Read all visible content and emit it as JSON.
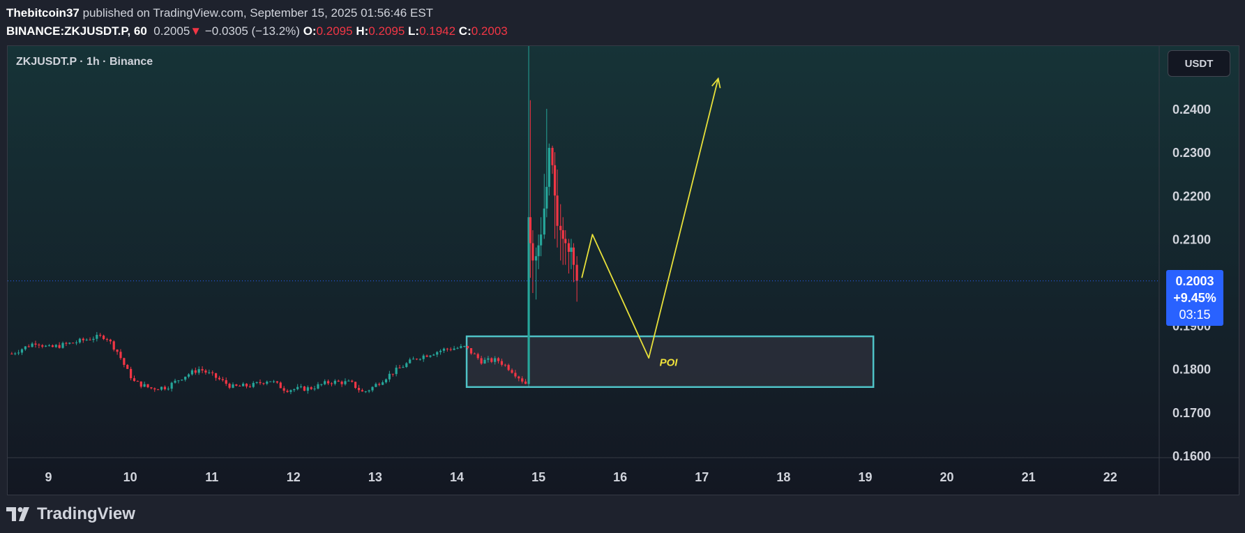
{
  "header": {
    "author": "Thebitcoin37",
    "published": " published on TradingView.com, September 15, 2025 01:56:46 EST",
    "symbol": "BINANCE:ZKJUSDT.P, 60",
    "last": "0.2005",
    "down_arrow": "▼",
    "change": "−0.0305 (−13.2%)",
    "o_label": "O:",
    "o_value": "0.2095",
    "h_label": "H:",
    "h_value": "0.2095",
    "l_label": "L:",
    "l_value": "0.1942",
    "c_label": "C:",
    "c_value": "0.2003"
  },
  "symbol_title": "ZKJUSDT.P · 1h · Binance",
  "currency": "USDT",
  "price_tag": {
    "price": "0.2003",
    "change": "+9.45%",
    "countdown": "03:15"
  },
  "footer": {
    "brand": "TradingView"
  },
  "colors": {
    "up": "#26a69a",
    "down": "#f23645",
    "bg_top": "#163337",
    "bg_bottom": "#131722",
    "poi_border": "#4fc3c7",
    "arrow": "#e8e13a",
    "price_line": "#2962ff"
  },
  "chart_data": {
    "type": "candlestick",
    "x_tick_labels": [
      "9",
      "10",
      "11",
      "12",
      "13",
      "14",
      "15",
      "16",
      "17",
      "18",
      "19",
      "20",
      "21",
      "22"
    ],
    "y_tick_labels": [
      "0.2400",
      "0.2300",
      "0.2200",
      "0.2100",
      "0.1900",
      "0.1800",
      "0.1700",
      "0.1600"
    ],
    "ylim": [
      0.1595,
      0.2545
    ],
    "xlim": [
      8.5,
      22.6
    ],
    "current_price": 0.2003,
    "anchors": [
      [
        8.55,
        0.1835
      ],
      [
        8.85,
        0.1862
      ],
      [
        9.0,
        0.1848
      ],
      [
        9.3,
        0.186
      ],
      [
        9.55,
        0.1872
      ],
      [
        9.7,
        0.1875
      ],
      [
        9.85,
        0.1838
      ],
      [
        9.95,
        0.18
      ],
      [
        10.05,
        0.177
      ],
      [
        10.25,
        0.1755
      ],
      [
        10.45,
        0.1758
      ],
      [
        10.65,
        0.1782
      ],
      [
        10.85,
        0.18
      ],
      [
        11.05,
        0.178
      ],
      [
        11.25,
        0.1758
      ],
      [
        11.5,
        0.1762
      ],
      [
        11.7,
        0.1775
      ],
      [
        11.9,
        0.1752
      ],
      [
        12.2,
        0.1755
      ],
      [
        12.45,
        0.177
      ],
      [
        12.7,
        0.1768
      ],
      [
        12.85,
        0.1745
      ],
      [
        12.95,
        0.1755
      ],
      [
        13.2,
        0.179
      ],
      [
        13.5,
        0.1825
      ],
      [
        13.85,
        0.1845
      ],
      [
        14.1,
        0.185
      ],
      [
        14.3,
        0.1818
      ],
      [
        14.5,
        0.182
      ],
      [
        14.65,
        0.18
      ],
      [
        14.85,
        0.1765
      ]
    ],
    "spike": {
      "x": [
        14.88,
        14.9,
        14.93,
        14.97,
        15.0,
        15.03,
        15.07,
        15.1,
        15.13,
        15.17,
        15.2,
        15.23,
        15.27,
        15.3,
        15.33,
        15.37,
        15.4,
        15.43,
        15.47
      ],
      "open": [
        0.1765,
        0.215,
        0.209,
        0.205,
        0.206,
        0.2085,
        0.211,
        0.217,
        0.222,
        0.231,
        0.227,
        0.22,
        0.213,
        0.212,
        0.21,
        0.209,
        0.207,
        0.208,
        0.204
      ],
      "close": [
        0.215,
        0.209,
        0.205,
        0.206,
        0.2085,
        0.211,
        0.217,
        0.222,
        0.231,
        0.227,
        0.22,
        0.213,
        0.212,
        0.21,
        0.209,
        0.207,
        0.208,
        0.204,
        0.2003
      ],
      "high": [
        0.2545,
        0.242,
        0.212,
        0.208,
        0.211,
        0.215,
        0.225,
        0.24,
        0.232,
        0.2315,
        0.23,
        0.226,
        0.218,
        0.215,
        0.212,
        0.21,
        0.21,
        0.209,
        0.206
      ],
      "low": [
        0.176,
        0.201,
        0.1975,
        0.196,
        0.203,
        0.206,
        0.21,
        0.215,
        0.22,
        0.225,
        0.21,
        0.208,
        0.205,
        0.204,
        0.204,
        0.202,
        0.203,
        0.2,
        0.1955
      ]
    },
    "poi": {
      "label": "POI",
      "x0": 14.12,
      "x1": 19.1,
      "y_top": 0.1875,
      "y_bottom": 0.1758
    },
    "projection_path": [
      [
        15.53,
        0.201
      ],
      [
        15.66,
        0.211
      ],
      [
        16.35,
        0.1825
      ],
      [
        17.2,
        0.247
      ]
    ]
  }
}
